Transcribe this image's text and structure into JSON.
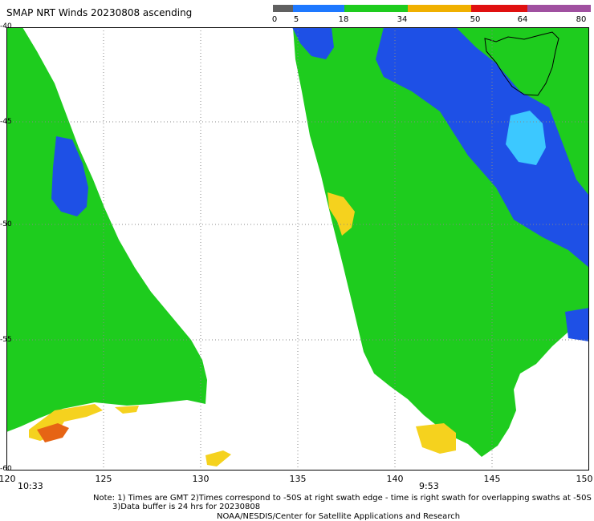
{
  "title": "SMAP NRT Winds 20230808 ascending",
  "colorbar": {
    "labels": [
      "0",
      "5",
      "18",
      "34",
      "50",
      "64",
      "80"
    ],
    "segments": [
      {
        "from": 0,
        "to": 5,
        "color": "#606060"
      },
      {
        "from": 5,
        "to": 18,
        "color": "#1e78ff"
      },
      {
        "from": 18,
        "to": 34,
        "color": "#1ecc1e"
      },
      {
        "from": 34,
        "to": 50,
        "color": "#f0b000"
      },
      {
        "from": 50,
        "to": 64,
        "color": "#e01010"
      },
      {
        "from": 64,
        "to": 80,
        "color": "#a050a0"
      }
    ]
  },
  "map": {
    "lon_range": [
      120,
      150
    ],
    "lat_range": [
      -60,
      -40
    ],
    "lon_ticks": [
      "120",
      "125",
      "130",
      "135",
      "140",
      "145",
      "150"
    ],
    "lat_ticks": [
      "-40",
      "-45",
      "-50",
      "-55",
      "-60"
    ],
    "grid": true
  },
  "swath_times": [
    "10:33",
    "9:53"
  ],
  "notes": [
    "Note: 1) Times are GMT 2)Times correspond to -50S at right swath edge - time is right swath for overlapping swaths at -50S",
    "3)Data buffer is 24 hrs for 20230808",
    "NOAA/NESDIS/Center for Satellite Applications and Research"
  ],
  "colors": {
    "calm": "#1ecc1e",
    "moderate": "#1e50e6",
    "light": "#3cc8ff",
    "gale": "#f5d21e",
    "storm": "#e66414",
    "land": "#000000"
  }
}
